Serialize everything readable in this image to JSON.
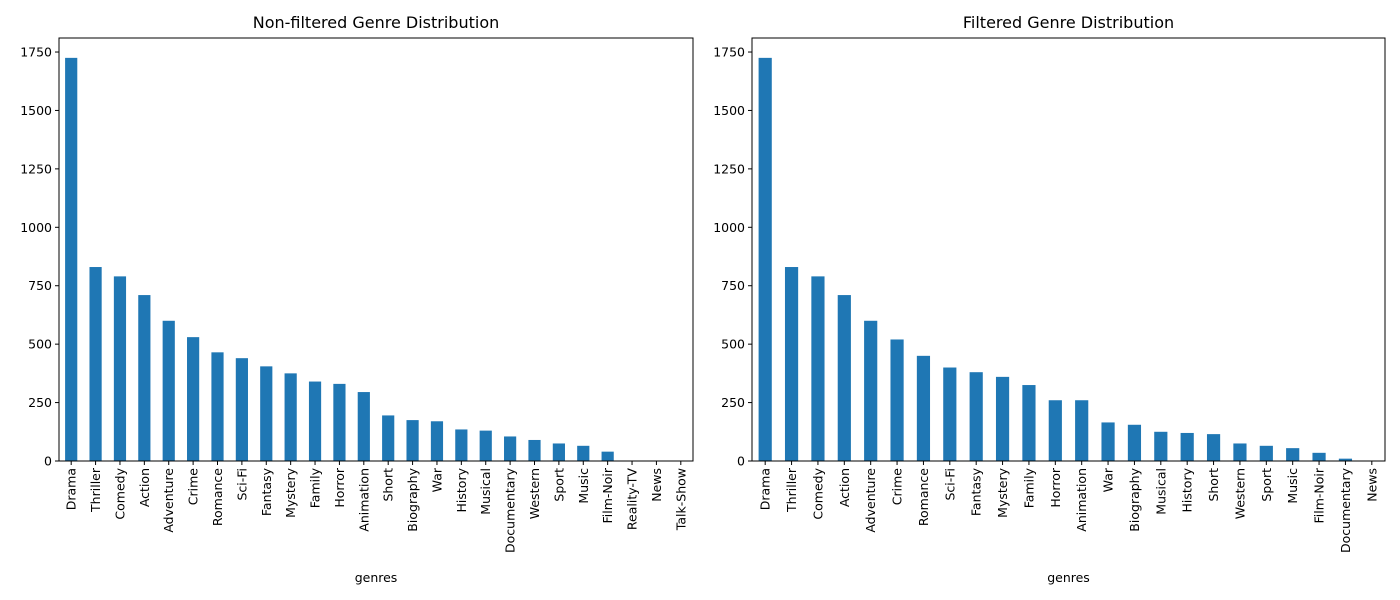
{
  "chart_data": [
    {
      "type": "bar",
      "title": "Non-filtered Genre Distribution",
      "xlabel": "genres",
      "ylabel": "",
      "ylim": [
        0,
        1810
      ],
      "yticks": [
        0,
        250,
        500,
        750,
        1000,
        1250,
        1500,
        1750
      ],
      "grid": false,
      "color": "#1f77b4",
      "categories": [
        "Drama",
        "Thriller",
        "Comedy",
        "Action",
        "Adventure",
        "Crime",
        "Romance",
        "Sci-Fi",
        "Fantasy",
        "Mystery",
        "Family",
        "Horror",
        "Animation",
        "Short",
        "Biography",
        "War",
        "History",
        "Musical",
        "Documentary",
        "Western",
        "Sport",
        "Music",
        "Film-Noir",
        "Reality-TV",
        "News",
        "Talk-Show"
      ],
      "values": [
        1725,
        830,
        790,
        710,
        600,
        530,
        465,
        440,
        405,
        375,
        340,
        330,
        295,
        195,
        175,
        170,
        135,
        130,
        105,
        90,
        75,
        65,
        40,
        1,
        1,
        1
      ]
    },
    {
      "type": "bar",
      "title": "Filtered Genre Distribution",
      "xlabel": "genres",
      "ylabel": "",
      "ylim": [
        0,
        1810
      ],
      "yticks": [
        0,
        250,
        500,
        750,
        1000,
        1250,
        1500,
        1750
      ],
      "grid": false,
      "color": "#1f77b4",
      "categories": [
        "Drama",
        "Thriller",
        "Comedy",
        "Action",
        "Adventure",
        "Crime",
        "Romance",
        "Sci-Fi",
        "Fantasy",
        "Mystery",
        "Family",
        "Horror",
        "Animation",
        "War",
        "Biography",
        "Musical",
        "History",
        "Short",
        "Western",
        "Sport",
        "Music",
        "Film-Noir",
        "Documentary",
        "News"
      ],
      "values": [
        1725,
        830,
        790,
        710,
        600,
        520,
        450,
        400,
        380,
        360,
        325,
        260,
        260,
        165,
        155,
        125,
        120,
        115,
        75,
        65,
        55,
        35,
        10,
        1
      ]
    }
  ]
}
